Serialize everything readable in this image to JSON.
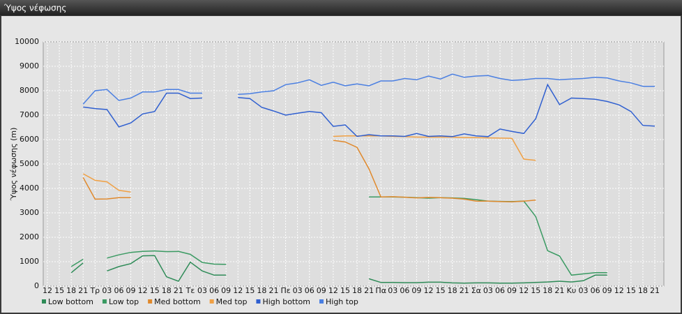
{
  "chart_data": {
    "type": "line",
    "title": "Ύψος νέφωσης",
    "y_label": "Ύψος νέφωσης (m)",
    "categories": [
      "12",
      "15",
      "18",
      "21",
      "Τρ",
      "03",
      "06",
      "09",
      "12",
      "15",
      "18",
      "21",
      "Τε",
      "03",
      "06",
      "09",
      "12",
      "15",
      "18",
      "21",
      "Πε",
      "03",
      "06",
      "09",
      "12",
      "15",
      "18",
      "21",
      "Πα",
      "03",
      "06",
      "09",
      "12",
      "15",
      "18",
      "21",
      "Σα",
      "03",
      "06",
      "09",
      "12",
      "15",
      "18",
      "21",
      "Κυ",
      "03",
      "06",
      "09",
      "12",
      "15",
      "18",
      "21"
    ],
    "ylim": [
      0,
      10000
    ],
    "yticks": [
      0,
      1000,
      2000,
      3000,
      4000,
      5000,
      6000,
      7000,
      8000,
      9000,
      10000
    ],
    "grid": true,
    "series": [
      {
        "name": "Low bottom",
        "color": "#2e8b57",
        "values": [
          null,
          null,
          550,
          950,
          null,
          620,
          800,
          920,
          1240,
          1250,
          380,
          200,
          980,
          620,
          450,
          450,
          null,
          null,
          null,
          null,
          null,
          null,
          null,
          null,
          null,
          null,
          null,
          300,
          150,
          150,
          140,
          140,
          160,
          160,
          130,
          120,
          130,
          130,
          120,
          120,
          130,
          150,
          170,
          200,
          170,
          220,
          450,
          450,
          null,
          null,
          null,
          null
        ]
      },
      {
        "name": "Low top",
        "color": "#3a9a62",
        "values": [
          null,
          null,
          800,
          1100,
          null,
          1150,
          1280,
          1380,
          1420,
          1440,
          1410,
          1420,
          1300,
          970,
          900,
          890,
          null,
          null,
          null,
          null,
          null,
          null,
          null,
          null,
          null,
          null,
          null,
          3650,
          3650,
          3650,
          3640,
          3620,
          3600,
          3620,
          3610,
          3590,
          3540,
          3480,
          3470,
          3460,
          3480,
          2850,
          1450,
          1230,
          450,
          500,
          550,
          550,
          null,
          null,
          null,
          null
        ]
      },
      {
        "name": "Med bottom",
        "color": "#e0892c",
        "values": [
          null,
          null,
          null,
          4450,
          3560,
          3570,
          3620,
          3620,
          null,
          null,
          null,
          null,
          null,
          null,
          null,
          null,
          null,
          null,
          null,
          null,
          null,
          null,
          null,
          null,
          5970,
          5900,
          5680,
          4800,
          3650,
          3660,
          3640,
          3610,
          3630,
          3620,
          3600,
          3560,
          3480,
          3480,
          3460,
          3450,
          3480,
          3520,
          null,
          null,
          null,
          null,
          null,
          null,
          null,
          null,
          null,
          null
        ]
      },
      {
        "name": "Med top",
        "color": "#f0a044",
        "values": [
          null,
          null,
          null,
          4600,
          4330,
          4270,
          3920,
          3850,
          null,
          null,
          null,
          null,
          null,
          null,
          null,
          null,
          null,
          null,
          null,
          null,
          null,
          null,
          null,
          null,
          6130,
          6150,
          6150,
          6150,
          6150,
          6130,
          6120,
          6100,
          6100,
          6100,
          6100,
          6080,
          6080,
          6070,
          6060,
          6050,
          5200,
          5150,
          null,
          null,
          null,
          null,
          null,
          null,
          null,
          null,
          null,
          null
        ]
      },
      {
        "name": "High bottom",
        "color": "#2f5fd0",
        "values": [
          null,
          null,
          null,
          7330,
          7270,
          7230,
          6520,
          6680,
          7050,
          7150,
          7900,
          7900,
          7680,
          7700,
          null,
          null,
          7720,
          7680,
          7320,
          7170,
          7000,
          7080,
          7150,
          7100,
          6540,
          6600,
          6130,
          6200,
          6150,
          6150,
          6130,
          6250,
          6130,
          6150,
          6120,
          6230,
          6150,
          6120,
          6430,
          6330,
          6250,
          6850,
          8250,
          7430,
          7700,
          7680,
          7650,
          7560,
          7420,
          7150,
          6580,
          6550
        ]
      },
      {
        "name": "High top",
        "color": "#4a7fe2",
        "values": [
          null,
          null,
          null,
          7450,
          8000,
          8050,
          7600,
          7700,
          7950,
          7950,
          8050,
          8050,
          7900,
          7900,
          null,
          null,
          7850,
          7880,
          7950,
          8000,
          8250,
          8320,
          8450,
          8220,
          8350,
          8200,
          8280,
          8200,
          8400,
          8400,
          8500,
          8450,
          8600,
          8480,
          8680,
          8550,
          8600,
          8620,
          8500,
          8420,
          8450,
          8500,
          8500,
          8450,
          8480,
          8500,
          8550,
          8520,
          8400,
          8320,
          8180,
          8180
        ]
      }
    ]
  }
}
